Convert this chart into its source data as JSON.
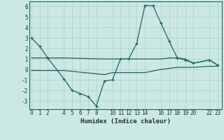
{
  "xlabel": "Humidex (Indice chaleur)",
  "bg_color": "#cce8e4",
  "grid_color": "#b0d8d0",
  "line_color": "#1a6660",
  "series1_x": [
    0,
    1,
    2,
    4,
    5,
    6,
    7,
    8,
    9,
    10,
    11,
    12,
    13,
    14,
    15,
    16,
    17,
    18,
    19,
    20,
    22,
    23
  ],
  "series1_y": [
    3.0,
    2.2,
    1.1,
    -0.9,
    -2.0,
    -2.3,
    -2.6,
    -3.5,
    -1.1,
    -1.0,
    1.0,
    1.0,
    2.5,
    6.1,
    6.1,
    4.4,
    2.7,
    1.1,
    0.9,
    0.6,
    0.9,
    0.4
  ],
  "series2_x": [
    0,
    2,
    4,
    9,
    10,
    11,
    12,
    13,
    14,
    16,
    17,
    18,
    19,
    20,
    22,
    23
  ],
  "series2_y": [
    1.1,
    1.1,
    1.1,
    1.0,
    1.0,
    1.0,
    1.0,
    1.0,
    1.0,
    1.0,
    1.1,
    1.1,
    1.0,
    0.6,
    0.9,
    0.4
  ],
  "series3_x": [
    0,
    2,
    4,
    9,
    10,
    14,
    16,
    17,
    18,
    19,
    20,
    22,
    23
  ],
  "series3_y": [
    -0.1,
    -0.1,
    -0.1,
    -0.5,
    -0.3,
    -0.3,
    0.0,
    0.1,
    0.2,
    0.2,
    0.2,
    0.3,
    0.3
  ],
  "xlim": [
    -0.3,
    23.5
  ],
  "ylim": [
    -3.8,
    6.5
  ],
  "xticks": [
    0,
    1,
    2,
    4,
    5,
    6,
    7,
    8,
    10,
    11,
    12,
    13,
    14,
    16,
    17,
    18,
    19,
    20,
    22,
    23
  ],
  "yticks": [
    -3,
    -2,
    -1,
    0,
    1,
    2,
    3,
    4,
    5,
    6
  ]
}
